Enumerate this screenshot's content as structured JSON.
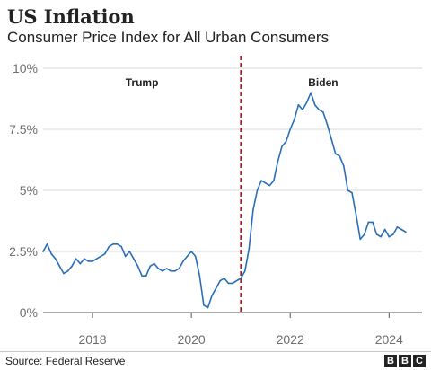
{
  "header": {
    "title": "US Inflation",
    "subtitle": "Consumer Price Index for All Urban Consumers"
  },
  "footer": {
    "source": "Source: Federal Reserve",
    "logo_letters": [
      "B",
      "B",
      "C"
    ]
  },
  "colors": {
    "line": "#2a6ebb",
    "divider": "#b80000",
    "grid": "#d9d9d9",
    "axis_text": "#6e6e6e"
  },
  "chart_data": {
    "type": "line",
    "title": "US Inflation",
    "subtitle": "Consumer Price Index for All Urban Consumers",
    "xlabel": "",
    "ylabel": "",
    "ylim": [
      0,
      10
    ],
    "xlim": [
      "2017-01",
      "2024-09"
    ],
    "y_ticks": [
      {
        "value": 0,
        "label": "0%"
      },
      {
        "value": 2.5,
        "label": "2.5%"
      },
      {
        "value": 5,
        "label": "5%"
      },
      {
        "value": 7.5,
        "label": "7.5%"
      },
      {
        "value": 10,
        "label": "10%"
      }
    ],
    "x_ticks": [
      {
        "value": "2018-01",
        "label": "2018"
      },
      {
        "value": "2020-01",
        "label": "2020"
      },
      {
        "value": "2022-01",
        "label": "2022"
      },
      {
        "value": "2024-01",
        "label": "2024"
      }
    ],
    "grid": true,
    "divider_date": "2021-01",
    "annotations": [
      {
        "text": "Trump",
        "x": "2019-01"
      },
      {
        "text": "Biden",
        "x": "2022-09"
      }
    ],
    "series": [
      {
        "x": [
          "2017-01",
          "2017-02",
          "2017-03",
          "2017-04",
          "2017-05",
          "2017-06",
          "2017-07",
          "2017-08",
          "2017-09",
          "2017-10",
          "2017-11",
          "2017-12",
          "2018-01",
          "2018-02",
          "2018-03",
          "2018-04",
          "2018-05",
          "2018-06",
          "2018-07",
          "2018-08",
          "2018-09",
          "2018-10",
          "2018-11",
          "2018-12",
          "2019-01",
          "2019-02",
          "2019-03",
          "2019-04",
          "2019-05",
          "2019-06",
          "2019-07",
          "2019-08",
          "2019-09",
          "2019-10",
          "2019-11",
          "2019-12",
          "2020-01",
          "2020-02",
          "2020-03",
          "2020-04",
          "2020-05",
          "2020-06",
          "2020-07",
          "2020-08",
          "2020-09",
          "2020-10",
          "2020-11",
          "2020-12",
          "2021-01",
          "2021-02",
          "2021-03",
          "2021-04",
          "2021-05",
          "2021-06",
          "2021-07",
          "2021-08",
          "2021-09",
          "2021-10",
          "2021-11",
          "2021-12",
          "2022-01",
          "2022-02",
          "2022-03",
          "2022-04",
          "2022-05",
          "2022-06",
          "2022-07",
          "2022-08",
          "2022-09",
          "2022-10",
          "2022-11",
          "2022-12",
          "2023-01",
          "2023-02",
          "2023-03",
          "2023-04",
          "2023-05",
          "2023-06",
          "2023-07",
          "2023-08",
          "2023-09",
          "2023-10",
          "2023-11",
          "2023-12",
          "2024-01",
          "2024-02",
          "2024-03",
          "2024-04",
          "2024-05"
        ],
        "values": [
          2.5,
          2.8,
          2.4,
          2.2,
          1.9,
          1.6,
          1.7,
          1.9,
          2.2,
          2.0,
          2.2,
          2.1,
          2.1,
          2.2,
          2.3,
          2.4,
          2.7,
          2.8,
          2.8,
          2.7,
          2.3,
          2.5,
          2.2,
          1.9,
          1.5,
          1.5,
          1.9,
          2.0,
          1.8,
          1.7,
          1.8,
          1.7,
          1.7,
          1.8,
          2.1,
          2.3,
          2.5,
          2.3,
          1.5,
          0.3,
          0.2,
          0.7,
          1.0,
          1.3,
          1.4,
          1.2,
          1.2,
          1.3,
          1.4,
          1.7,
          2.6,
          4.2,
          5.0,
          5.4,
          5.3,
          5.2,
          5.4,
          6.2,
          6.8,
          7.0,
          7.5,
          7.9,
          8.5,
          8.3,
          8.6,
          9.0,
          8.5,
          8.3,
          8.2,
          7.7,
          7.1,
          6.5,
          6.4,
          6.0,
          5.0,
          4.9,
          4.0,
          3.0,
          3.2,
          3.7,
          3.7,
          3.2,
          3.1,
          3.4,
          3.1,
          3.2,
          3.5,
          3.4,
          3.3
        ]
      }
    ]
  }
}
